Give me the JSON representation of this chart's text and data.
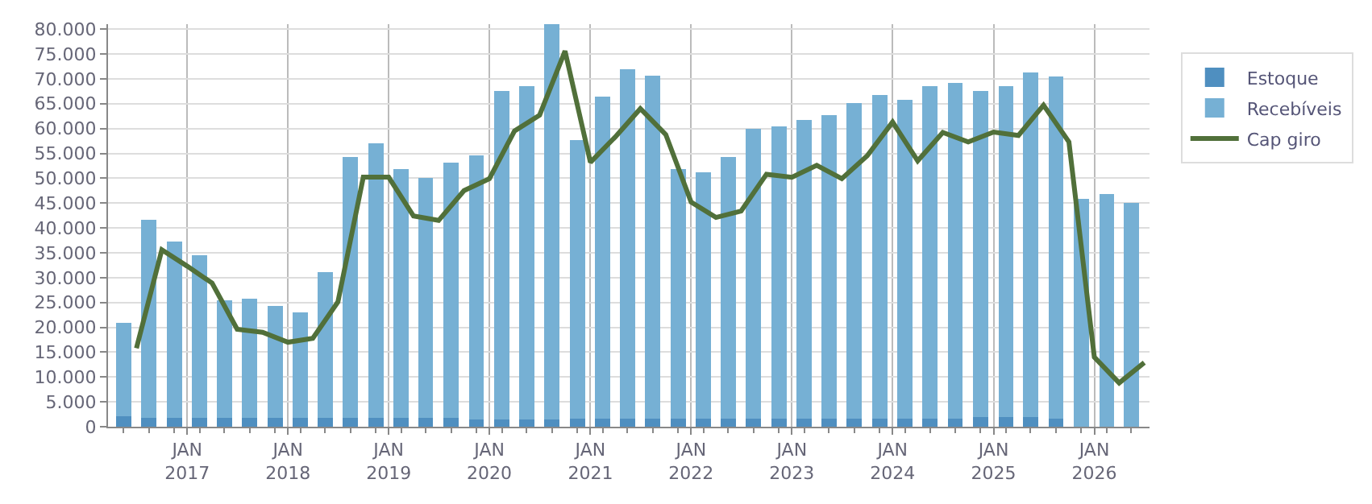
{
  "chart_data": {
    "type": "bar",
    "stacked": true,
    "xlim": [
      "2016-03-20",
      "2026-07-20"
    ],
    "xticks": [
      {
        "value": "2017-01-01",
        "label": "JAN\n2017"
      },
      {
        "value": "2018-01-01",
        "label": "JAN\n2018"
      },
      {
        "value": "2019-01-01",
        "label": "JAN\n2019"
      },
      {
        "value": "2020-01-01",
        "label": "JAN\n2020"
      },
      {
        "value": "2021-01-01",
        "label": "JAN\n2021"
      },
      {
        "value": "2022-01-01",
        "label": "JAN\n2022"
      },
      {
        "value": "2023-01-01",
        "label": "JAN\n2023"
      },
      {
        "value": "2024-01-01",
        "label": "JAN\n2024"
      },
      {
        "value": "2025-01-01",
        "label": "JAN\n2025"
      },
      {
        "value": "2026-01-01",
        "label": "JAN\n2026"
      }
    ],
    "ylim": [
      0,
      81000
    ],
    "yticks": [
      {
        "value": 0,
        "label": "0"
      },
      {
        "value": 5000,
        "label": "5.000"
      },
      {
        "value": 10000,
        "label": "10.000"
      },
      {
        "value": 15000,
        "label": "15.000"
      },
      {
        "value": 20000,
        "label": "20.000"
      },
      {
        "value": 25000,
        "label": "25.000"
      },
      {
        "value": 30000,
        "label": "30.000"
      },
      {
        "value": 35000,
        "label": "35.000"
      },
      {
        "value": 40000,
        "label": "40.000"
      },
      {
        "value": 45000,
        "label": "45.000"
      },
      {
        "value": 50000,
        "label": "50.000"
      },
      {
        "value": 55000,
        "label": "55.000"
      },
      {
        "value": 60000,
        "label": "60.000"
      },
      {
        "value": 65000,
        "label": "65.000"
      },
      {
        "value": 70000,
        "label": "70.000"
      },
      {
        "value": 75000,
        "label": "75.000"
      },
      {
        "value": 80000,
        "label": "80.000"
      }
    ],
    "grid": true,
    "legend": "top right",
    "series": [
      {
        "name": "Estoque",
        "color": "#4f8fc0",
        "x": [
          "2016-05-15",
          "2016-08-15",
          "2016-11-15",
          "2017-02-15",
          "2017-05-15",
          "2017-08-15",
          "2017-11-15",
          "2018-02-15",
          "2018-05-15",
          "2018-08-15",
          "2018-11-15",
          "2019-02-15",
          "2019-05-15",
          "2019-08-15",
          "2019-11-15",
          "2020-02-15",
          "2020-05-15",
          "2020-08-15",
          "2020-11-15",
          "2021-02-15",
          "2021-05-15",
          "2021-08-15",
          "2021-11-15",
          "2022-02-15",
          "2022-05-15",
          "2022-08-15",
          "2022-11-15",
          "2023-02-15",
          "2023-05-15",
          "2023-08-15",
          "2023-11-15",
          "2024-02-15",
          "2024-05-15",
          "2024-08-15",
          "2024-11-15",
          "2025-02-15",
          "2025-05-15",
          "2025-08-15",
          "2025-11-15",
          "2026-02-15",
          "2026-05-15"
        ],
        "values": [
          2100,
          1800,
          1800,
          1800,
          1800,
          1800,
          1800,
          1800,
          1800,
          1800,
          1800,
          1800,
          1800,
          1800,
          1400,
          1400,
          1400,
          1400,
          1700,
          1700,
          1700,
          1700,
          1700,
          1700,
          1700,
          1700,
          1700,
          1700,
          1700,
          1700,
          1700,
          1700,
          1700,
          1700,
          2000,
          2000,
          2000,
          1700,
          0,
          0,
          0
        ]
      },
      {
        "name": "Recebíveis",
        "color": "#76b0d4",
        "x": [
          "2016-05-15",
          "2016-08-15",
          "2016-11-15",
          "2017-02-15",
          "2017-05-15",
          "2017-08-15",
          "2017-11-15",
          "2018-02-15",
          "2018-05-15",
          "2018-08-15",
          "2018-11-15",
          "2019-02-15",
          "2019-05-15",
          "2019-08-15",
          "2019-11-15",
          "2020-02-15",
          "2020-05-15",
          "2020-08-15",
          "2020-11-15",
          "2021-02-15",
          "2021-05-15",
          "2021-08-15",
          "2021-11-15",
          "2022-02-15",
          "2022-05-15",
          "2022-08-15",
          "2022-11-15",
          "2023-02-15",
          "2023-05-15",
          "2023-08-15",
          "2023-11-15",
          "2024-02-15",
          "2024-05-15",
          "2024-08-15",
          "2024-11-15",
          "2025-02-15",
          "2025-05-15",
          "2025-08-15",
          "2025-11-15",
          "2026-02-15",
          "2026-05-15"
        ],
        "values": [
          18800,
          39800,
          35500,
          32700,
          23700,
          24000,
          22500,
          21200,
          29300,
          52500,
          55300,
          50000,
          48200,
          51300,
          53200,
          66200,
          67100,
          79600,
          56000,
          64700,
          70300,
          69000,
          50100,
          49500,
          52600,
          58200,
          58800,
          60000,
          61000,
          63400,
          65000,
          64100,
          66800,
          67500,
          65600,
          66500,
          69300,
          68700,
          45900,
          46900,
          45000
        ]
      },
      {
        "name": "Cap giro",
        "type": "line",
        "color": "#51703a",
        "marker": "none",
        "line_style": "solid",
        "x": [
          "2016-07",
          "2016-10",
          "2017-01",
          "2017-04",
          "2017-07",
          "2017-10",
          "2018-01",
          "2018-04",
          "2018-07",
          "2018-10",
          "2019-01",
          "2019-04",
          "2019-07",
          "2019-10",
          "2020-01",
          "2020-04",
          "2020-07",
          "2020-10",
          "2021-01",
          "2021-04",
          "2021-07",
          "2021-10",
          "2022-01",
          "2022-04",
          "2022-07",
          "2022-10",
          "2023-01",
          "2023-04",
          "2023-07",
          "2023-10",
          "2024-01",
          "2024-04",
          "2024-07",
          "2024-10",
          "2025-01",
          "2025-04",
          "2025-07",
          "2025-10",
          "2026-01",
          "2026-04",
          "2026-07"
        ],
        "values": [
          15800,
          35600,
          32300,
          28900,
          19600,
          19000,
          17000,
          17800,
          25100,
          50200,
          50200,
          42400,
          41500,
          47500,
          49900,
          59500,
          62700,
          75600,
          53200,
          58300,
          64000,
          58800,
          45200,
          42100,
          43400,
          50800,
          50200,
          52600,
          49900,
          54500,
          61300,
          53500,
          59200,
          57300,
          59300,
          58600,
          64700,
          57300,
          14000,
          8800,
          12900
        ]
      }
    ]
  }
}
